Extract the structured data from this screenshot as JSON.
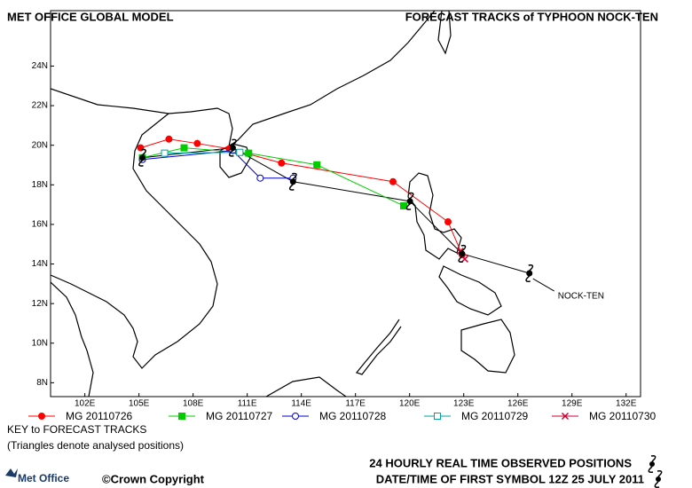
{
  "header": {
    "left": "MET OFFICE GLOBAL MODEL",
    "title": "FORECAST TRACKS of TYPHOON NOCK-TEN"
  },
  "chart_data": {
    "type": "track",
    "xlim": [
      100.1,
      132.8
    ],
    "ylim": [
      7.3,
      26.8
    ],
    "xticks": [
      {
        "value": 102,
        "label": "102E"
      },
      {
        "value": 105,
        "label": "105E"
      },
      {
        "value": 108,
        "label": "108E"
      },
      {
        "value": 111,
        "label": "111E"
      },
      {
        "value": 114,
        "label": "114E"
      },
      {
        "value": 117,
        "label": "117E"
      },
      {
        "value": 120,
        "label": "120E"
      },
      {
        "value": 123,
        "label": "123E"
      },
      {
        "value": 126,
        "label": "126E"
      },
      {
        "value": 129,
        "label": "129E"
      },
      {
        "value": 132,
        "label": "132E"
      }
    ],
    "yticks": [
      {
        "value": 8,
        "label": "8N"
      },
      {
        "value": 10,
        "label": "10N"
      },
      {
        "value": 12,
        "label": "12N"
      },
      {
        "value": 14,
        "label": "14N"
      },
      {
        "value": 16,
        "label": "16N"
      },
      {
        "value": 18,
        "label": "18N"
      },
      {
        "value": 20,
        "label": "20N"
      },
      {
        "value": 22,
        "label": "22N"
      },
      {
        "value": 24,
        "label": "24N"
      }
    ],
    "series": [
      {
        "name": "MG 20110726",
        "color": "#ff0000",
        "marker": "circle",
        "x": [
          105.09,
          106.66,
          108.23,
          110.0,
          112.9,
          119.08,
          122.13,
          122.91
        ],
        "y": [
          19.87,
          20.31,
          20.09,
          19.82,
          19.1,
          18.16,
          16.13,
          14.47
        ]
      },
      {
        "name": "MG 20110727",
        "color": "#00cc00",
        "marker": "square",
        "x": [
          105.19,
          107.5,
          111.08,
          114.86,
          119.67
        ],
        "y": [
          19.37,
          19.87,
          19.6,
          19.01,
          16.94
        ]
      },
      {
        "name": "MG 20110728",
        "color": "#0000cc",
        "marker": "open-circle",
        "x": [
          105.19,
          110.2,
          111.72,
          113.54
        ],
        "y": [
          19.28,
          19.73,
          18.34,
          18.34
        ]
      },
      {
        "name": "MG 20110729",
        "color": "#00a0a0",
        "marker": "open-square",
        "x": [
          106.42,
          110.59
        ],
        "y": [
          19.6,
          19.64
        ]
      },
      {
        "name": "MG 20110730",
        "color": "#cc0033",
        "marker": "x",
        "x": [
          122.81,
          123.06
        ],
        "y": [
          14.65,
          14.25
        ]
      }
    ],
    "observed": {
      "label": "NOCK-TEN",
      "color": "#000000",
      "x": [
        126.64,
        122.91,
        120.02,
        113.54,
        110.2,
        105.19
      ],
      "y": [
        13.53,
        14.52,
        17.17,
        18.16,
        19.87,
        19.37
      ]
    }
  },
  "footer": {
    "key_title": "KEY to FORECAST TRACKS",
    "key_note": "(Triangles denote analysed positions)",
    "logo": "Met Office",
    "copyright": "©Crown Copyright",
    "observed": "24 HOURLY REAL TIME OBSERVED POSITIONS",
    "date": "DATE/TIME OF FIRST SYMBOL 12Z 25 JULY 2011"
  }
}
